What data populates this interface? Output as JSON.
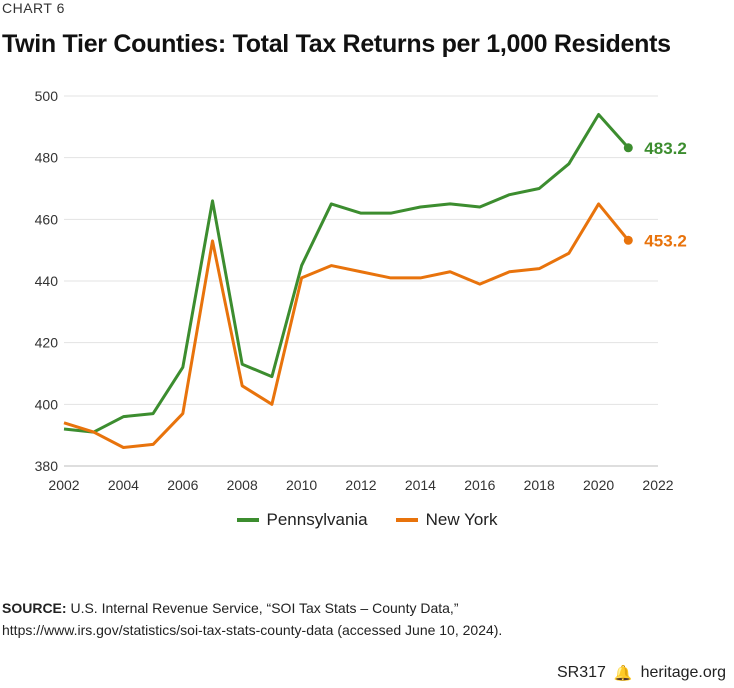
{
  "header": {
    "kicker": "CHART 6",
    "title": "Twin Tier Counties: Total Tax Returns per 1,000 Residents"
  },
  "chart_data": {
    "type": "line",
    "title": "Twin Tier Counties: Total Tax Returns per 1,000 Residents",
    "xlabel": "",
    "ylabel": "",
    "x": [
      2002,
      2003,
      2004,
      2005,
      2006,
      2007,
      2008,
      2009,
      2010,
      2011,
      2012,
      2013,
      2014,
      2015,
      2016,
      2017,
      2018,
      2019,
      2020,
      2021
    ],
    "series": [
      {
        "name": "Pennsylvania",
        "color": "#3c8d2f",
        "values": [
          392,
          391,
          396,
          397,
          412,
          466,
          413,
          409,
          445,
          465,
          462,
          462,
          464,
          465,
          464,
          468,
          470,
          478,
          494,
          483.2
        ],
        "end_label": "483.2"
      },
      {
        "name": "New York",
        "color": "#e8730c",
        "values": [
          394,
          391,
          386,
          387,
          397,
          453,
          406,
          400,
          441,
          445,
          443,
          441,
          441,
          443,
          439,
          443,
          444,
          449,
          465,
          453.2
        ],
        "end_label": "453.2"
      }
    ],
    "xlim": [
      2002,
      2022
    ],
    "ylim": [
      380,
      500
    ],
    "xticks": [
      "2002",
      "2004",
      "2006",
      "2008",
      "2010",
      "2012",
      "2014",
      "2016",
      "2018",
      "2020",
      "2022"
    ],
    "yticks": [
      "380",
      "400",
      "420",
      "440",
      "460",
      "480",
      "500"
    ],
    "grid": true,
    "legend": "bottom"
  },
  "source": {
    "label": "SOURCE:",
    "text": " U.S. Internal Revenue Service, “SOI Tax Stats – County Data,”",
    "line2": "https://www.irs.gov/statistics/soi-tax-stats-county-data (accessed June 10, 2024)."
  },
  "footer": {
    "code": "SR317",
    "site": "heritage.org"
  }
}
